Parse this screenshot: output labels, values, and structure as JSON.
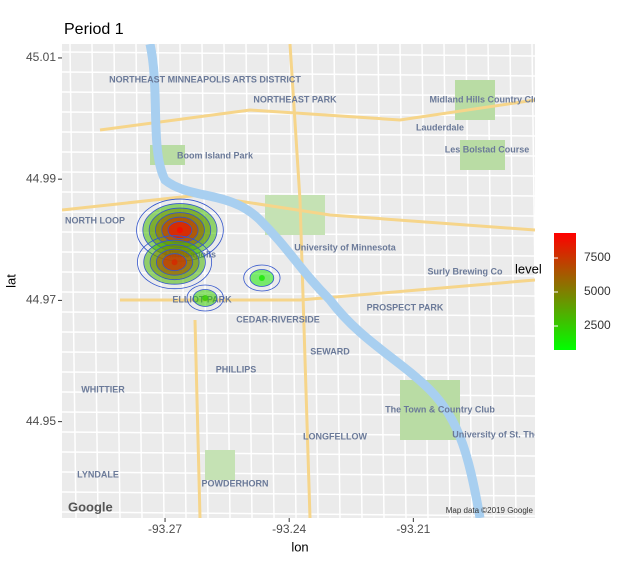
{
  "chart_data": {
    "type": "density-map",
    "title": "Period 1",
    "x_label": "lon",
    "y_label": "lat",
    "xlim": [
      -93.2949,
      -93.1806
    ],
    "ylim": [
      44.9341,
      45.0123
    ],
    "xticks": [
      -93.27,
      -93.24,
      -93.21
    ],
    "yticks": [
      44.95,
      44.97,
      44.99,
      45.01
    ],
    "x": [
      -93.2664,
      -93.2677,
      -93.2603,
      -93.2466
    ],
    "y": [
      44.9816,
      44.9763,
      44.9704,
      44.9737
    ],
    "levels": [
      9000,
      8000,
      2500,
      1500
    ],
    "contour_color": "#3355cc",
    "legend": {
      "title": "level",
      "low_color": "#00ff00",
      "high_color": "#ff0000",
      "lim": [
        735,
        9340
      ],
      "ticks": [
        2500,
        5000,
        7500
      ]
    },
    "map_labels": [
      "NORTHEAST MINNEAPOLIS ARTS DISTRICT",
      "NORTHEAST PARK",
      "Lauderdale",
      "Midland Hills Country Club",
      "Les Bolstad Course",
      "Boom Island Park",
      "NORTH LOOP",
      "Minneapolis",
      "University of Minnesota",
      "Surly Brewing Co",
      "PROSPECT PARK",
      "ELLIOT PARK",
      "CEDAR-RIVERSIDE",
      "SEWARD",
      "PHILLIPS",
      "WHITTIER",
      "LONGFELLOW",
      "The Town & Country Club",
      "University of St. Thomas",
      "LYNDALE",
      "POWDERHORN"
    ],
    "attribution": [
      "Google",
      "Map data ©2019 Google"
    ]
  }
}
